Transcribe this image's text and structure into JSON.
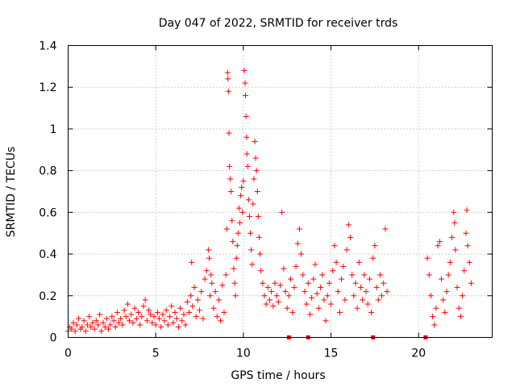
{
  "chart_data": {
    "type": "scatter",
    "title": "Day 047 of 2022, SRMTID for receiver trds",
    "xlabel": "GPS time / hours",
    "ylabel": "SRMTID / TECUs",
    "xlim": [
      0,
      24.2
    ],
    "ylim": [
      0,
      1.4
    ],
    "x_ticks": [
      0,
      5,
      10,
      15,
      20
    ],
    "x_tick_labels": [
      "0",
      "5",
      "10",
      "15",
      "20"
    ],
    "y_ticks": [
      0,
      0.2,
      0.4,
      0.6,
      0.8,
      1.0,
      1.2,
      1.4
    ],
    "y_tick_labels": [
      "0",
      "0.2",
      "0.4",
      "0.6",
      "0.8",
      "1",
      "1.2",
      "1.4"
    ],
    "grid": true,
    "marker": "+",
    "series_color": "#ff0000",
    "series": [
      {
        "name": "SRMTID",
        "points": [
          [
            0.0,
            0.03
          ],
          [
            0.1,
            0.05
          ],
          [
            0.2,
            0.04
          ],
          [
            0.3,
            0.07
          ],
          [
            0.4,
            0.03
          ],
          [
            0.5,
            0.06
          ],
          [
            0.6,
            0.09
          ],
          [
            0.7,
            0.04
          ],
          [
            0.8,
            0.05
          ],
          [
            0.9,
            0.08
          ],
          [
            1.0,
            0.03
          ],
          [
            1.1,
            0.06
          ],
          [
            1.2,
            0.1
          ],
          [
            1.3,
            0.05
          ],
          [
            1.4,
            0.07
          ],
          [
            1.5,
            0.04
          ],
          [
            1.6,
            0.08
          ],
          [
            1.7,
            0.06
          ],
          [
            1.8,
            0.11
          ],
          [
            1.9,
            0.03
          ],
          [
            2.0,
            0.07
          ],
          [
            2.1,
            0.05
          ],
          [
            2.2,
            0.09
          ],
          [
            2.3,
            0.04
          ],
          [
            2.4,
            0.06
          ],
          [
            2.5,
            0.1
          ],
          [
            2.6,
            0.08
          ],
          [
            2.7,
            0.05
          ],
          [
            2.8,
            0.12
          ],
          [
            2.9,
            0.07
          ],
          [
            3.0,
            0.09
          ],
          [
            3.1,
            0.06
          ],
          [
            3.2,
            0.13
          ],
          [
            3.3,
            0.1
          ],
          [
            3.4,
            0.16
          ],
          [
            3.5,
            0.08
          ],
          [
            3.6,
            0.11
          ],
          [
            3.7,
            0.07
          ],
          [
            3.8,
            0.14
          ],
          [
            3.9,
            0.09
          ],
          [
            4.0,
            0.12
          ],
          [
            4.1,
            0.06
          ],
          [
            4.2,
            0.1
          ],
          [
            4.3,
            0.15
          ],
          [
            4.4,
            0.18
          ],
          [
            4.5,
            0.08
          ],
          [
            4.6,
            0.13
          ],
          [
            4.7,
            0.11
          ],
          [
            4.8,
            0.07
          ],
          [
            4.9,
            0.1
          ],
          [
            5.0,
            0.06
          ],
          [
            5.1,
            0.12
          ],
          [
            5.2,
            0.09
          ],
          [
            5.3,
            0.05
          ],
          [
            5.4,
            0.11
          ],
          [
            5.5,
            0.08
          ],
          [
            5.6,
            0.13
          ],
          [
            5.7,
            0.06
          ],
          [
            5.8,
            0.1
          ],
          [
            5.9,
            0.15
          ],
          [
            6.0,
            0.07
          ],
          [
            6.1,
            0.12
          ],
          [
            6.2,
            0.09
          ],
          [
            6.3,
            0.05
          ],
          [
            6.4,
            0.14
          ],
          [
            6.5,
            0.08
          ],
          [
            6.6,
            0.11
          ],
          [
            6.7,
            0.06
          ],
          [
            6.8,
            0.17
          ],
          [
            6.9,
            0.12
          ],
          [
            7.0,
            0.2
          ],
          [
            7.05,
            0.36
          ],
          [
            7.1,
            0.15
          ],
          [
            7.2,
            0.24
          ],
          [
            7.3,
            0.1
          ],
          [
            7.4,
            0.18
          ],
          [
            7.5,
            0.13
          ],
          [
            7.6,
            0.22
          ],
          [
            7.7,
            0.09
          ],
          [
            7.8,
            0.28
          ],
          [
            7.9,
            0.32
          ],
          [
            8.0,
            0.42
          ],
          [
            8.05,
            0.38
          ],
          [
            8.1,
            0.2
          ],
          [
            8.15,
            0.3
          ],
          [
            8.2,
            0.26
          ],
          [
            8.3,
            0.14
          ],
          [
            8.4,
            0.22
          ],
          [
            8.5,
            0.1
          ],
          [
            8.6,
            0.18
          ],
          [
            8.7,
            0.08
          ],
          [
            8.8,
            0.25
          ],
          [
            8.9,
            0.12
          ],
          [
            9.0,
            0.3
          ],
          [
            9.05,
            0.52
          ],
          [
            9.1,
            1.27
          ],
          [
            9.12,
            1.24
          ],
          [
            9.15,
            1.18
          ],
          [
            9.18,
            0.98
          ],
          [
            9.2,
            0.82
          ],
          [
            9.25,
            0.76
          ],
          [
            9.3,
            0.7
          ],
          [
            9.35,
            0.56
          ],
          [
            9.4,
            0.46
          ],
          [
            9.45,
            0.33
          ],
          [
            9.5,
            0.26
          ],
          [
            9.55,
            0.2
          ],
          [
            9.6,
            0.38
          ],
          [
            9.65,
            0.44
          ],
          [
            9.7,
            0.5
          ],
          [
            9.75,
            0.62
          ],
          [
            9.8,
            0.55
          ],
          [
            9.85,
            0.68
          ],
          [
            9.9,
            0.72
          ],
          [
            9.95,
            0.6
          ],
          [
            10.0,
            0.75
          ],
          [
            10.05,
            1.28
          ],
          [
            10.1,
            1.22
          ],
          [
            10.12,
            1.16
          ],
          [
            10.15,
            1.06
          ],
          [
            10.18,
            0.96
          ],
          [
            10.2,
            0.88
          ],
          [
            10.25,
            0.82
          ],
          [
            10.3,
            0.66
          ],
          [
            10.35,
            0.58
          ],
          [
            10.4,
            0.5
          ],
          [
            10.45,
            0.42
          ],
          [
            10.5,
            0.35
          ],
          [
            10.55,
            0.64
          ],
          [
            10.6,
            0.76
          ],
          [
            10.65,
            0.94
          ],
          [
            10.7,
            0.86
          ],
          [
            10.75,
            0.8
          ],
          [
            10.8,
            0.7
          ],
          [
            10.85,
            0.58
          ],
          [
            10.9,
            0.48
          ],
          [
            10.95,
            0.4
          ],
          [
            11.0,
            0.32
          ],
          [
            11.1,
            0.26
          ],
          [
            11.2,
            0.2
          ],
          [
            11.3,
            0.16
          ],
          [
            11.4,
            0.24
          ],
          [
            11.5,
            0.18
          ],
          [
            11.6,
            0.22
          ],
          [
            11.7,
            0.15
          ],
          [
            11.8,
            0.26
          ],
          [
            11.9,
            0.2
          ],
          [
            12.0,
            0.17
          ],
          [
            12.1,
            0.25
          ],
          [
            12.2,
            0.6
          ],
          [
            12.3,
            0.33
          ],
          [
            12.4,
            0.22
          ],
          [
            12.5,
            0.14
          ],
          [
            12.6,
            0.2
          ],
          [
            12.7,
            0.28
          ],
          [
            12.8,
            0.12
          ],
          [
            12.9,
            0.24
          ],
          [
            13.0,
            0.34
          ],
          [
            13.1,
            0.45
          ],
          [
            13.2,
            0.52
          ],
          [
            13.3,
            0.4
          ],
          [
            13.4,
            0.3
          ],
          [
            13.5,
            0.22
          ],
          [
            13.6,
            0.16
          ],
          [
            13.7,
            0.26
          ],
          [
            13.8,
            0.11
          ],
          [
            13.9,
            0.19
          ],
          [
            14.0,
            0.28
          ],
          [
            14.1,
            0.35
          ],
          [
            14.2,
            0.21
          ],
          [
            14.3,
            0.14
          ],
          [
            14.4,
            0.24
          ],
          [
            14.5,
            0.3
          ],
          [
            14.6,
            0.18
          ],
          [
            14.7,
            0.08
          ],
          [
            14.8,
            0.2
          ],
          [
            14.9,
            0.26
          ],
          [
            15.0,
            0.16
          ],
          [
            15.1,
            0.32
          ],
          [
            15.2,
            0.44
          ],
          [
            15.3,
            0.36
          ],
          [
            15.4,
            0.22
          ],
          [
            15.5,
            0.12
          ],
          [
            15.6,
            0.28
          ],
          [
            15.7,
            0.34
          ],
          [
            15.8,
            0.18
          ],
          [
            15.9,
            0.42
          ],
          [
            16.0,
            0.54
          ],
          [
            16.1,
            0.48
          ],
          [
            16.2,
            0.3
          ],
          [
            16.3,
            0.2
          ],
          [
            16.4,
            0.26
          ],
          [
            16.5,
            0.14
          ],
          [
            16.6,
            0.36
          ],
          [
            16.7,
            0.24
          ],
          [
            16.8,
            0.18
          ],
          [
            16.9,
            0.3
          ],
          [
            17.0,
            0.22
          ],
          [
            17.1,
            0.16
          ],
          [
            17.2,
            0.28
          ],
          [
            17.3,
            0.12
          ],
          [
            17.4,
            0.38
          ],
          [
            17.5,
            0.44
          ],
          [
            17.6,
            0.24
          ],
          [
            17.7,
            0.18
          ],
          [
            17.8,
            0.3
          ],
          [
            17.9,
            0.2
          ],
          [
            18.0,
            0.26
          ],
          [
            18.1,
            0.52
          ],
          [
            18.2,
            0.22
          ],
          [
            20.5,
            0.38
          ],
          [
            20.6,
            0.3
          ],
          [
            20.7,
            0.2
          ],
          [
            20.8,
            0.1
          ],
          [
            20.9,
            0.06
          ],
          [
            21.0,
            0.14
          ],
          [
            21.1,
            0.44
          ],
          [
            21.2,
            0.46
          ],
          [
            21.3,
            0.28
          ],
          [
            21.4,
            0.18
          ],
          [
            21.5,
            0.12
          ],
          [
            21.6,
            0.22
          ],
          [
            21.7,
            0.3
          ],
          [
            21.8,
            0.36
          ],
          [
            21.9,
            0.48
          ],
          [
            22.0,
            0.6
          ],
          [
            22.05,
            0.55
          ],
          [
            22.1,
            0.42
          ],
          [
            22.2,
            0.24
          ],
          [
            22.3,
            0.14
          ],
          [
            22.4,
            0.1
          ],
          [
            22.5,
            0.2
          ],
          [
            22.6,
            0.32
          ],
          [
            22.7,
            0.5
          ],
          [
            22.75,
            0.61
          ],
          [
            22.8,
            0.44
          ],
          [
            22.9,
            0.36
          ],
          [
            23.0,
            0.26
          ]
        ]
      }
    ],
    "data_gap_markers_x": [
      12.6,
      13.7,
      17.4,
      20.4
    ]
  }
}
